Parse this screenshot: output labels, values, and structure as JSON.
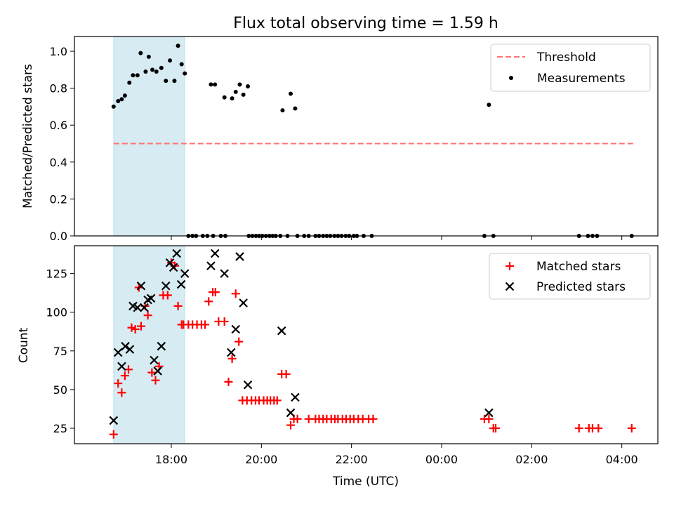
{
  "chart_data": [
    {
      "type": "scatter",
      "title": "Flux total observing time = 1.59 h",
      "ylabel": "Matched/Predicted stars",
      "ylim": [
        0,
        1.08
      ],
      "yticks": [
        0.0,
        0.2,
        0.4,
        0.6,
        0.8,
        1.0
      ],
      "ytick_labels": [
        "0.0",
        "0.2",
        "0.4",
        "0.6",
        "0.8",
        "1.0"
      ],
      "x_unit": "hours since 16:00 UTC",
      "xlim": [
        15.85,
        28.8
      ],
      "shaded_span": [
        16.72,
        18.3
      ],
      "shaded_color": "#add8e6",
      "threshold": {
        "label": "Threshold",
        "value": 0.5,
        "x_range": [
          16.72,
          28.25
        ],
        "color": "#ff7373"
      },
      "legend": {
        "position": "top-right",
        "entries": [
          "Threshold",
          "Measurements"
        ]
      },
      "series": [
        {
          "name": "Measurements",
          "color": "#000000",
          "marker": "dot",
          "x": [
            16.72,
            16.82,
            16.9,
            16.97,
            17.07,
            17.15,
            17.25,
            17.32,
            17.43,
            17.5,
            17.58,
            17.67,
            17.78,
            17.88,
            17.97,
            18.07,
            18.15,
            18.23,
            18.3,
            18.88,
            18.97,
            19.18,
            19.35,
            19.43,
            19.52,
            19.6,
            19.7,
            20.47,
            20.65,
            20.75,
            25.05,
            18.38,
            18.47,
            18.55,
            18.7,
            18.8,
            18.93,
            19.1,
            19.2,
            19.72,
            19.8,
            19.88,
            19.95,
            20.02,
            20.1,
            20.18,
            20.25,
            20.32,
            20.42,
            20.58,
            20.8,
            20.95,
            21.05,
            21.2,
            21.28,
            21.37,
            21.45,
            21.53,
            21.62,
            21.7,
            21.78,
            21.87,
            21.95,
            22.05,
            22.12,
            22.27,
            22.45,
            24.95,
            25.15,
            27.05,
            27.25,
            27.35,
            27.45,
            28.22
          ],
          "y": [
            0.7,
            0.73,
            0.74,
            0.76,
            0.83,
            0.87,
            0.87,
            0.99,
            0.89,
            0.97,
            0.9,
            0.89,
            0.91,
            0.84,
            0.95,
            0.84,
            1.03,
            0.93,
            0.88,
            0.82,
            0.82,
            0.75,
            0.745,
            0.78,
            0.82,
            0.765,
            0.81,
            0.68,
            0.77,
            0.69,
            0.71,
            0,
            0,
            0,
            0,
            0,
            0,
            0,
            0,
            0,
            0,
            0,
            0,
            0,
            0,
            0,
            0,
            0,
            0,
            0,
            0,
            0,
            0,
            0,
            0,
            0,
            0,
            0,
            0,
            0,
            0,
            0,
            0,
            0,
            0,
            0,
            0,
            0,
            0,
            0,
            0,
            0,
            0,
            0
          ]
        }
      ]
    },
    {
      "type": "scatter",
      "xlabel": "Time (UTC)",
      "ylabel": "Count",
      "ylim": [
        15,
        143
      ],
      "yticks": [
        25,
        50,
        75,
        100,
        125
      ],
      "ytick_labels": [
        "25",
        "50",
        "75",
        "100",
        "125"
      ],
      "x_unit": "hours since 16:00 UTC",
      "xlim": [
        15.85,
        28.8
      ],
      "xticks": [
        18,
        20,
        22,
        24,
        26,
        28
      ],
      "xtick_labels": [
        "18:00",
        "20:00",
        "22:00",
        "00:00",
        "02:00",
        "04:00"
      ],
      "shaded_span": [
        16.72,
        18.3
      ],
      "shaded_color": "#add8e6",
      "legend": {
        "position": "top-right",
        "entries": [
          "Matched stars",
          "Predicted stars"
        ]
      },
      "series": [
        {
          "name": "Matched stars",
          "color": "#ff0000",
          "marker": "plus",
          "x": [
            16.72,
            16.82,
            16.9,
            16.97,
            17.05,
            17.12,
            17.2,
            17.28,
            17.33,
            17.42,
            17.48,
            17.57,
            17.65,
            17.73,
            17.82,
            17.92,
            18.0,
            18.08,
            18.15,
            18.23,
            18.27,
            18.38,
            18.47,
            18.57,
            18.67,
            18.75,
            18.83,
            18.92,
            18.98,
            19.05,
            19.18,
            19.27,
            19.35,
            19.43,
            19.5,
            19.58,
            19.68,
            19.78,
            19.87,
            19.95,
            20.05,
            20.13,
            20.2,
            20.28,
            20.35,
            20.45,
            20.55,
            20.65,
            20.72,
            20.8,
            21.05,
            21.2,
            21.28,
            21.37,
            21.45,
            21.55,
            21.63,
            21.7,
            21.8,
            21.88,
            21.97,
            22.05,
            22.15,
            22.25,
            22.38,
            22.48,
            24.95,
            25.05,
            25.15,
            25.2,
            27.05,
            27.27,
            27.35,
            27.48,
            28.22
          ],
          "y": [
            21,
            54,
            48,
            59,
            63,
            90,
            89,
            116,
            91,
            104,
            98,
            61,
            56,
            65,
            111,
            111,
            132,
            130,
            104,
            92,
            92,
            92,
            92,
            92,
            92,
            92,
            107,
            113,
            113,
            94,
            94,
            55,
            70,
            112,
            81,
            43,
            43,
            43,
            43,
            43,
            43,
            43,
            43,
            43,
            43,
            60,
            60,
            27,
            31,
            31,
            31,
            31,
            31,
            31,
            31,
            31,
            31,
            31,
            31,
            31,
            31,
            31,
            31,
            31,
            31,
            31,
            31,
            31,
            25,
            25,
            25,
            25,
            25,
            25,
            25
          ]
        },
        {
          "name": "Predicted stars",
          "color": "#000000",
          "marker": "x",
          "x": [
            16.72,
            16.82,
            16.9,
            16.98,
            17.08,
            17.15,
            17.25,
            17.33,
            17.4,
            17.48,
            17.55,
            17.62,
            17.7,
            17.78,
            17.88,
            17.97,
            18.05,
            18.12,
            18.22,
            18.3,
            18.88,
            18.97,
            19.18,
            19.33,
            19.43,
            19.52,
            19.6,
            19.7,
            20.45,
            20.65,
            20.75,
            25.05
          ],
          "y": [
            30,
            74,
            65,
            78,
            76,
            104,
            103,
            117,
            103,
            108,
            109,
            69,
            62,
            78,
            117,
            132,
            129,
            138,
            118,
            125,
            130,
            138,
            125,
            74,
            89,
            136,
            106,
            53,
            88,
            35,
            45,
            35
          ]
        }
      ]
    }
  ]
}
